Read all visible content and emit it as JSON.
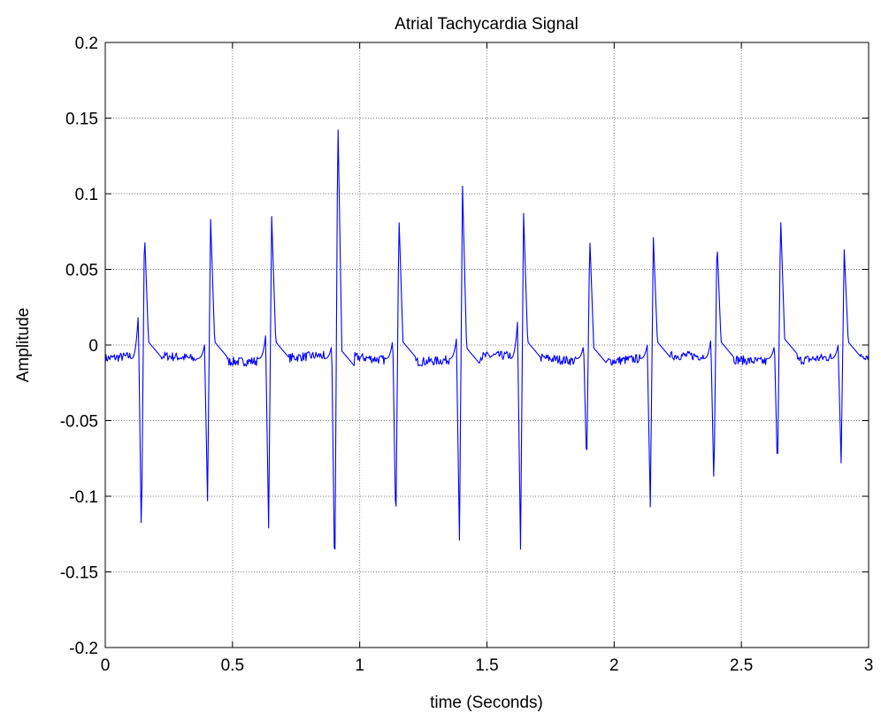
{
  "chart_data": {
    "type": "line",
    "title": "Atrial Tachycardia Signal",
    "xlabel": "time (Seconds)",
    "ylabel": "Amplitude",
    "xlim": [
      0,
      3
    ],
    "ylim": [
      -0.2,
      0.2
    ],
    "xticks": [
      0,
      0.5,
      1,
      1.5,
      2,
      2.5,
      3
    ],
    "xtick_labels": [
      "0",
      "0.5",
      "1",
      "1.5",
      "2",
      "2.5",
      "3"
    ],
    "yticks": [
      -0.2,
      -0.15,
      -0.1,
      -0.05,
      0,
      0.05,
      0.1,
      0.15,
      0.2
    ],
    "ytick_labels": [
      "-0.2",
      "-0.15",
      "-0.1",
      "-0.05",
      "0",
      "0.05",
      "0.1",
      "0.15",
      "0.2"
    ],
    "grid": true,
    "line_color": "#0000ff",
    "beats": [
      {
        "t": 0.13,
        "pre_peak": 0.021,
        "trough": -0.13,
        "peak": 0.077,
        "baseline_after": -0.008
      },
      {
        "t": 0.39,
        "pre_peak": 0.0,
        "trough": -0.103,
        "peak": 0.083,
        "baseline_after": -0.008
      },
      {
        "t": 0.63,
        "pre_peak": 0.006,
        "trough": -0.121,
        "peak": 0.085,
        "baseline_after": -0.008
      },
      {
        "t": 0.89,
        "pre_peak": 0.0,
        "trough": -0.161,
        "peak": 0.152,
        "baseline_after": -0.014
      },
      {
        "t": 1.13,
        "pre_peak": 0.004,
        "trough": -0.124,
        "peak": 0.086,
        "baseline_after": -0.008
      },
      {
        "t": 1.38,
        "pre_peak": 0.004,
        "trough": -0.129,
        "peak": 0.105,
        "baseline_after": -0.012
      },
      {
        "t": 1.62,
        "pre_peak": 0.015,
        "trough": -0.135,
        "peak": 0.087,
        "baseline_after": -0.008
      },
      {
        "t": 1.88,
        "pre_peak": 0.0,
        "trough": -0.082,
        "peak": 0.072,
        "baseline_after": -0.012
      },
      {
        "t": 2.13,
        "pre_peak": 0.0,
        "trough": -0.107,
        "peak": 0.071,
        "baseline_after": -0.008
      },
      {
        "t": 2.38,
        "pre_peak": 0.004,
        "trough": -0.095,
        "peak": 0.07,
        "baseline_after": -0.008
      },
      {
        "t": 2.63,
        "pre_peak": 0.0,
        "trough": -0.086,
        "peak": 0.086,
        "baseline_after": -0.006
      },
      {
        "t": 2.88,
        "pre_peak": 0.0,
        "trough": -0.078,
        "peak": 0.063,
        "baseline_after": -0.008
      }
    ],
    "baseline": -0.009
  }
}
